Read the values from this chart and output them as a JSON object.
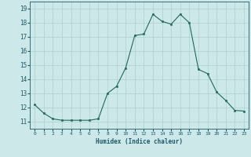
{
  "x": [
    0,
    1,
    2,
    3,
    4,
    5,
    6,
    7,
    8,
    9,
    10,
    11,
    12,
    13,
    14,
    15,
    16,
    17,
    18,
    19,
    20,
    21,
    22,
    23
  ],
  "y": [
    12.2,
    11.6,
    11.2,
    11.1,
    11.1,
    11.1,
    11.1,
    11.2,
    13.0,
    13.5,
    14.8,
    17.1,
    17.2,
    18.6,
    18.1,
    17.9,
    18.6,
    18.0,
    14.7,
    14.4,
    13.1,
    12.5,
    11.8,
    11.75
  ],
  "line_color": "#1a6b5a",
  "marker_color": "#1a6b5a",
  "bg_color": "#cde8e8",
  "grid_color": "#aecfcf",
  "xlabel": "Humidex (Indice chaleur)",
  "xlabel_color": "#1a5a6b",
  "tick_color": "#1a5a6b",
  "xlim": [
    -0.5,
    23.5
  ],
  "ylim": [
    10.5,
    19.5
  ],
  "yticks": [
    11,
    12,
    13,
    14,
    15,
    16,
    17,
    18,
    19
  ],
  "xticks": [
    0,
    1,
    2,
    3,
    4,
    5,
    6,
    7,
    8,
    9,
    10,
    11,
    12,
    13,
    14,
    15,
    16,
    17,
    18,
    19,
    20,
    21,
    22,
    23
  ]
}
